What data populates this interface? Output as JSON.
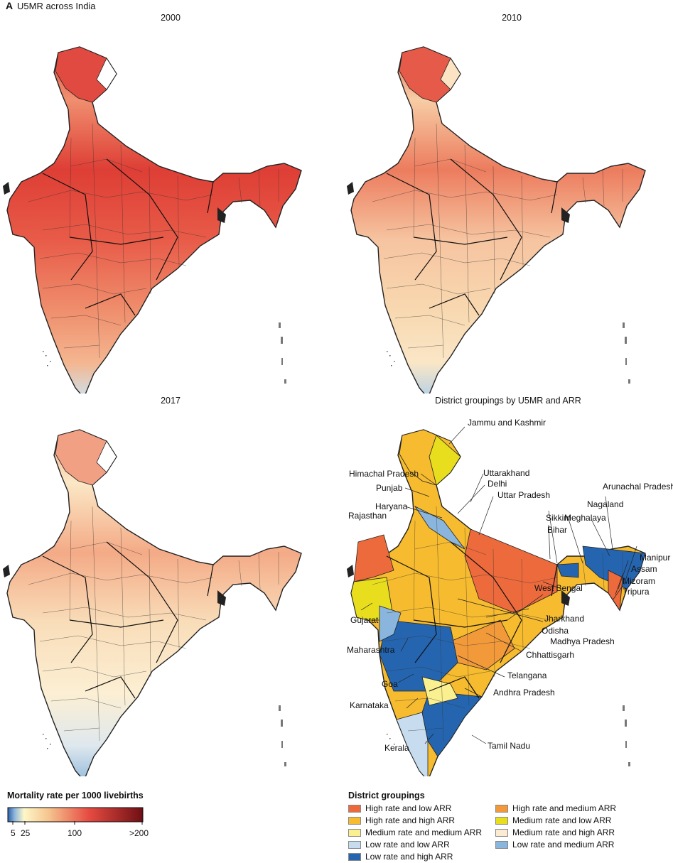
{
  "figure": {
    "panel_letter": "A",
    "title": "U5MR across India"
  },
  "panels": [
    {
      "title": "2000",
      "variant": "y2000"
    },
    {
      "title": "2010",
      "variant": "y2010"
    },
    {
      "title": "2017",
      "variant": "y2017"
    },
    {
      "title": "District groupings by U5MR and ARR",
      "variant": "groups"
    }
  ],
  "state_labels": {
    "jk": "Jammu and Kashmir",
    "hp": "Himachal Pradesh",
    "uk": "Uttarakhand",
    "pb": "Punjab",
    "dl": "Delhi",
    "hr": "Haryana",
    "up": "Uttar Pradesh",
    "rj": "Rajasthan",
    "ar": "Arunachal Pradesh",
    "nl": "Nagaland",
    "sk": "Sikkim",
    "ml": "Meghalaya",
    "br": "Bihar",
    "mn": "Manipur",
    "as": "Assam",
    "mz": "Mizoram",
    "wb": "West Bengal",
    "tr": "Tripura",
    "gj": "Gujarat",
    "jh": "Jharkhand",
    "od": "Odisha",
    "mp": "Madhya Pradesh",
    "mh": "Maharashtra",
    "cg": "Chhattisgarh",
    "tg": "Telangana",
    "ga": "Goa",
    "ap": "Andhra Pradesh",
    "ka": "Karnataka",
    "kl": "Kerala",
    "tn": "Tamil Nadu"
  },
  "colorbar": {
    "title": "Mortality rate per 1000 livebirths",
    "ticks": [
      "5",
      "25",
      "100",
      ">200"
    ],
    "colors": [
      "#2a5ea6",
      "#8db6dc",
      "#fdf7c8",
      "#f6c58f",
      "#e64b41",
      "#6e0f14"
    ]
  },
  "groupings": {
    "title": "District groupings",
    "items": [
      {
        "label": "High rate and low ARR",
        "color": "#ec6a3c"
      },
      {
        "label": "High rate and high ARR",
        "color": "#f6bb2e"
      },
      {
        "label": "Medium rate and medium ARR",
        "color": "#fbf08f"
      },
      {
        "label": "Low rate and low ARR",
        "color": "#c7dcee"
      },
      {
        "label": "Low rate and high ARR",
        "color": "#2565b0"
      },
      {
        "label": "High rate and medium ARR",
        "color": "#f29a3a"
      },
      {
        "label": "Medium rate and low ARR",
        "color": "#e8de1d"
      },
      {
        "label": "Medium rate and high ARR",
        "color": "#faebd2"
      },
      {
        "label": "Low rate and medium ARR",
        "color": "#8ab6de"
      }
    ]
  }
}
